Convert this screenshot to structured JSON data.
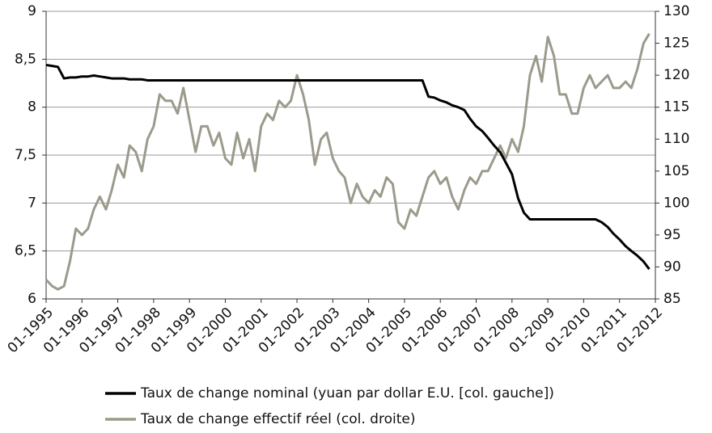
{
  "chart_data": {
    "type": "line",
    "x": [
      1995,
      1995.17,
      1995.33,
      1995.5,
      1995.67,
      1995.83,
      1996,
      1996.17,
      1996.33,
      1996.5,
      1996.67,
      1996.83,
      1997,
      1997.17,
      1997.33,
      1997.5,
      1997.67,
      1997.83,
      1998,
      1998.17,
      1998.33,
      1998.5,
      1998.67,
      1998.83,
      1999,
      1999.17,
      1999.33,
      1999.5,
      1999.67,
      1999.83,
      2000,
      2000.17,
      2000.33,
      2000.5,
      2000.67,
      2000.83,
      2001,
      2001.17,
      2001.33,
      2001.5,
      2001.67,
      2001.83,
      2002,
      2002.17,
      2002.33,
      2002.5,
      2002.67,
      2002.83,
      2003,
      2003.17,
      2003.33,
      2003.5,
      2003.67,
      2003.83,
      2004,
      2004.17,
      2004.33,
      2004.5,
      2004.67,
      2004.83,
      2005,
      2005.17,
      2005.33,
      2005.5,
      2005.67,
      2005.83,
      2006,
      2006.17,
      2006.33,
      2006.5,
      2006.67,
      2006.83,
      2007,
      2007.17,
      2007.33,
      2007.5,
      2007.67,
      2007.83,
      2008,
      2008.17,
      2008.33,
      2008.5,
      2008.67,
      2008.83,
      2009,
      2009.17,
      2009.33,
      2009.5,
      2009.67,
      2009.83,
      2010,
      2010.17,
      2010.33,
      2010.5,
      2010.67,
      2010.83,
      2011,
      2011.17,
      2011.33,
      2011.5,
      2011.67,
      2011.83
    ],
    "series": [
      {
        "name": "Taux de change nominal (yuan par dollar E.U. [col. gauche])",
        "color": "#000000",
        "values": [
          8.44,
          8.43,
          8.42,
          8.3,
          8.31,
          8.31,
          8.32,
          8.32,
          8.33,
          8.32,
          8.31,
          8.3,
          8.3,
          8.3,
          8.29,
          8.29,
          8.29,
          8.28,
          8.28,
          8.28,
          8.28,
          8.28,
          8.28,
          8.28,
          8.28,
          8.28,
          8.28,
          8.28,
          8.28,
          8.28,
          8.28,
          8.28,
          8.28,
          8.28,
          8.28,
          8.28,
          8.28,
          8.28,
          8.28,
          8.28,
          8.28,
          8.28,
          8.28,
          8.28,
          8.28,
          8.28,
          8.28,
          8.28,
          8.28,
          8.28,
          8.28,
          8.28,
          8.28,
          8.28,
          8.28,
          8.28,
          8.28,
          8.28,
          8.28,
          8.28,
          8.28,
          8.28,
          8.28,
          8.28,
          8.11,
          8.1,
          8.07,
          8.05,
          8.02,
          8.0,
          7.97,
          7.88,
          7.8,
          7.75,
          7.68,
          7.6,
          7.53,
          7.42,
          7.3,
          7.05,
          6.9,
          6.83,
          6.83,
          6.83,
          6.83,
          6.83,
          6.83,
          6.83,
          6.83,
          6.83,
          6.83,
          6.83,
          6.83,
          6.8,
          6.75,
          6.68,
          6.62,
          6.55,
          6.5,
          6.45,
          6.39,
          6.31
        ]
      },
      {
        "name": "Taux de change effectif réel (col. droite)",
        "color": "#9c9a8c",
        "axis": "y2",
        "values": [
          88,
          87,
          86.5,
          87,
          91,
          96,
          95,
          96,
          99,
          101,
          99,
          102,
          106,
          104,
          109,
          108,
          105,
          110,
          112,
          117,
          116,
          116,
          114,
          118,
          113,
          108,
          112,
          112,
          109,
          111,
          107,
          106,
          111,
          107,
          110,
          105,
          112,
          114,
          113,
          116,
          115,
          116,
          120,
          117,
          113,
          106,
          110,
          111,
          107,
          105,
          104,
          100,
          103,
          101,
          100,
          102,
          101,
          104,
          103,
          97,
          96,
          99,
          98,
          101,
          104,
          105,
          103,
          104,
          101,
          99,
          102,
          104,
          103,
          105,
          105,
          107,
          109,
          107,
          110,
          108,
          112,
          120,
          123,
          119,
          126,
          123,
          117,
          117,
          114,
          114,
          118,
          120,
          118,
          119,
          120,
          118,
          118,
          119,
          118,
          121,
          125,
          126.5
        ]
      }
    ],
    "xlim": [
      1995,
      2012
    ],
    "xticks": [
      {
        "value": 1995,
        "label": "01-1995"
      },
      {
        "value": 1996,
        "label": "01-1996"
      },
      {
        "value": 1997,
        "label": "01-1997"
      },
      {
        "value": 1998,
        "label": "01-1998"
      },
      {
        "value": 1999,
        "label": "01-1999"
      },
      {
        "value": 2000,
        "label": "01-2000"
      },
      {
        "value": 2001,
        "label": "01-2001"
      },
      {
        "value": 2002,
        "label": "01-2002"
      },
      {
        "value": 2003,
        "label": "01-2003"
      },
      {
        "value": 2004,
        "label": "01-2004"
      },
      {
        "value": 2005,
        "label": "01-2005"
      },
      {
        "value": 2006,
        "label": "01-2006"
      },
      {
        "value": 2007,
        "label": "01-2007"
      },
      {
        "value": 2008,
        "label": "01-2008"
      },
      {
        "value": 2009,
        "label": "01-2009"
      },
      {
        "value": 2010,
        "label": "01-2010"
      },
      {
        "value": 2011,
        "label": "01-2011"
      },
      {
        "value": 2012,
        "label": "01-2012"
      }
    ],
    "ylim": [
      6,
      9
    ],
    "yticks": [
      6,
      {
        "value": 6.5,
        "label": "6,5"
      },
      7,
      {
        "value": 7.5,
        "label": "7,5"
      },
      8,
      {
        "value": 8.5,
        "label": "8,5"
      },
      9
    ],
    "y2lim": [
      85,
      130
    ],
    "y2ticks": [
      85,
      90,
      95,
      100,
      105,
      110,
      115,
      120,
      125,
      130
    ],
    "grid": true
  }
}
